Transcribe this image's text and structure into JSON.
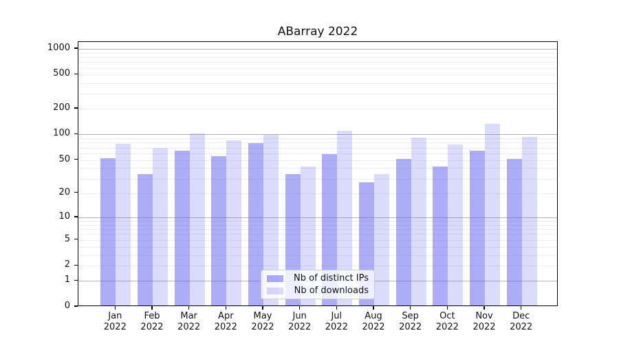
{
  "title": "ABarray 2022",
  "chart_data": {
    "type": "bar",
    "title": "ABarray 2022",
    "categories": [
      "Jan 2022",
      "Feb 2022",
      "Mar 2022",
      "Apr 2022",
      "May 2022",
      "Jun 2022",
      "Jul 2022",
      "Aug 2022",
      "Sep 2022",
      "Oct 2022",
      "Nov 2022",
      "Dec 2022"
    ],
    "month_labels": [
      "Jan",
      "Feb",
      "Mar",
      "Apr",
      "May",
      "Jun",
      "Jul",
      "Aug",
      "Sep",
      "Oct",
      "Nov",
      "Dec"
    ],
    "year_label": "2022",
    "series": [
      {
        "name": "Nb of distinct IPs",
        "color": "rgba(90,90,240,0.5)",
        "values": [
          52,
          34,
          64,
          55,
          79,
          34,
          59,
          27,
          51,
          42,
          65,
          51
        ]
      },
      {
        "name": "Nb of downloads",
        "color": "rgba(90,90,240,0.22)",
        "values": [
          78,
          69,
          102,
          85,
          99,
          42,
          110,
          34,
          91,
          76,
          133,
          93
        ]
      }
    ],
    "xlabel": "",
    "ylabel": "",
    "yscale": "log1p",
    "ylim": [
      0,
      1200
    ],
    "yticks": [
      0,
      1,
      2,
      5,
      10,
      20,
      50,
      100,
      200,
      500,
      1000
    ],
    "grid": {
      "on": true,
      "major_lines": [
        1,
        10,
        100,
        1000
      ],
      "minor_multipliers": [
        2,
        3,
        4,
        5,
        6,
        7,
        8,
        9
      ],
      "minor_decades": [
        1,
        10,
        100
      ],
      "major_color": "#b3b3b3",
      "minor_color": "#ebebeb"
    },
    "legend": {
      "position": "lower-center-inside",
      "entries": [
        "Nb of distinct IPs",
        "Nb of downloads"
      ]
    },
    "colors": {
      "bar_base": "#5a5af0",
      "spine": "#000000",
      "background": "#ffffff"
    }
  }
}
